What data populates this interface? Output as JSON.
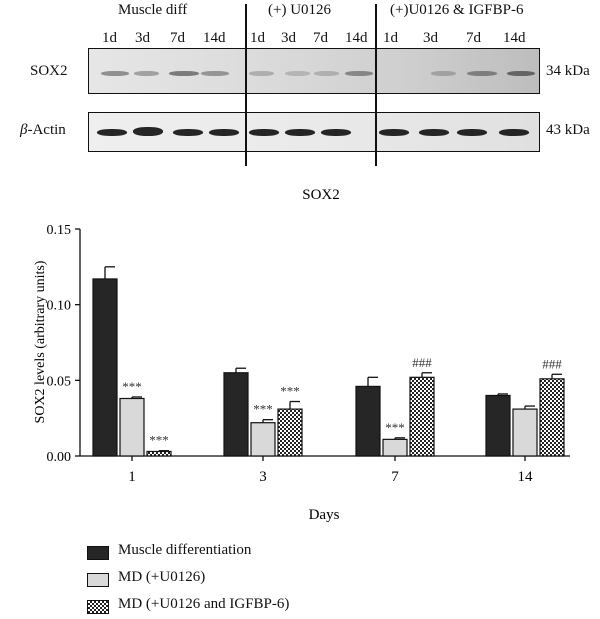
{
  "blot": {
    "groups": [
      "Muscle diff",
      "(+) U0126",
      "(+)U0126 & IGFBP-6"
    ],
    "days": [
      "1d",
      "3d",
      "7d",
      "14d",
      "1d",
      "3d",
      "7d",
      "14d",
      "1d",
      "3d",
      "7d",
      "14d"
    ],
    "rows": [
      {
        "name": "SOX2",
        "size": "34 kDa"
      },
      {
        "name_symbol": "β",
        "name_rest": "-Actin",
        "size": "43 kDa"
      }
    ]
  },
  "chart_data": {
    "type": "bar",
    "title": "SOX2",
    "xlabel": "Days",
    "ylabel": "SOX2 levels (arbitrary units)",
    "categories": [
      "1",
      "3",
      "7",
      "14"
    ],
    "ylim": [
      0,
      0.15
    ],
    "yticks": [
      "0.00",
      "0.05",
      "0.10",
      "0.15"
    ],
    "series": [
      {
        "name": "Muscle differentiation",
        "fill": "#262626",
        "values": [
          0.117,
          0.055,
          0.046,
          0.04
        ],
        "errors": [
          0.008,
          0.003,
          0.006,
          0.001
        ],
        "annotations": [
          "",
          "",
          "",
          ""
        ]
      },
      {
        "name": "MD (+U0126)",
        "fill": "#d9d9d9",
        "values": [
          0.038,
          0.022,
          0.011,
          0.031
        ],
        "errors": [
          0.001,
          0.002,
          0.001,
          0.002
        ],
        "annotations": [
          "***",
          "***",
          "***",
          ""
        ]
      },
      {
        "name": "MD (+U0126 and IGFBP-6)",
        "fill": "checker",
        "values": [
          0.003,
          0.031,
          0.052,
          0.051
        ],
        "errors": [
          0.0005,
          0.005,
          0.003,
          0.003
        ],
        "annotations": [
          "***",
          "***",
          "###",
          "###"
        ]
      }
    ],
    "grid": false,
    "legend": "bottom-left"
  }
}
